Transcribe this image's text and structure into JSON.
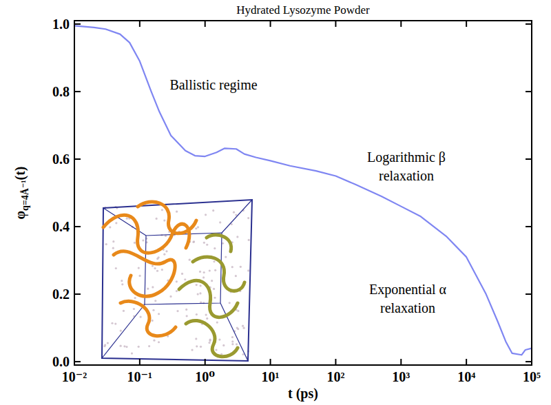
{
  "chart_data": {
    "type": "line",
    "title": "Hydrated Lysozyme Powder",
    "x_label": "t (ps)",
    "y_label": "φq=4Å⁻¹(t)",
    "log": "x",
    "color": "#7f86f2",
    "x": [
      0.01,
      0.02,
      0.03,
      0.05,
      0.07,
      0.1,
      0.15,
      0.2,
      0.3,
      0.5,
      0.7,
      1,
      1.5,
      2,
      3,
      4,
      6,
      10,
      20,
      50,
      100,
      200,
      500,
      1000,
      2000,
      5000,
      10000,
      20000,
      30000,
      40000,
      50000,
      70000,
      80000,
      100000
    ],
    "values": [
      0.995,
      0.99,
      0.985,
      0.97,
      0.945,
      0.89,
      0.8,
      0.74,
      0.67,
      0.625,
      0.61,
      0.608,
      0.62,
      0.632,
      0.63,
      0.615,
      0.605,
      0.595,
      0.58,
      0.565,
      0.55,
      0.525,
      0.49,
      0.46,
      0.43,
      0.37,
      0.31,
      0.2,
      0.12,
      0.06,
      0.025,
      0.02,
      0.035,
      0.04
    ],
    "xlim": [
      0.01,
      100000
    ],
    "xticks": [
      {
        "value": 0.01,
        "label": "10⁻²"
      },
      {
        "value": 0.1,
        "label": "10⁻¹"
      },
      {
        "value": 1,
        "label": "10⁰"
      },
      {
        "value": 10,
        "label": "10¹"
      },
      {
        "value": 100,
        "label": "10²"
      },
      {
        "value": 1000,
        "label": "10³"
      },
      {
        "value": 10000,
        "label": "10⁴"
      },
      {
        "value": 100000,
        "label": "10⁵"
      }
    ],
    "ylim": [
      -0.01,
      1.01
    ],
    "yticks": [
      {
        "value": 0,
        "label": "0.0"
      },
      0.2,
      0.4,
      0.6,
      0.8,
      {
        "value": 1,
        "label": "1.0"
      }
    ],
    "grid": false,
    "annotations": [
      [
        "Ballistic regime"
      ],
      [
        "Logarithmic β",
        "relaxation"
      ],
      [
        "Exponential α",
        "relaxation"
      ]
    ]
  }
}
